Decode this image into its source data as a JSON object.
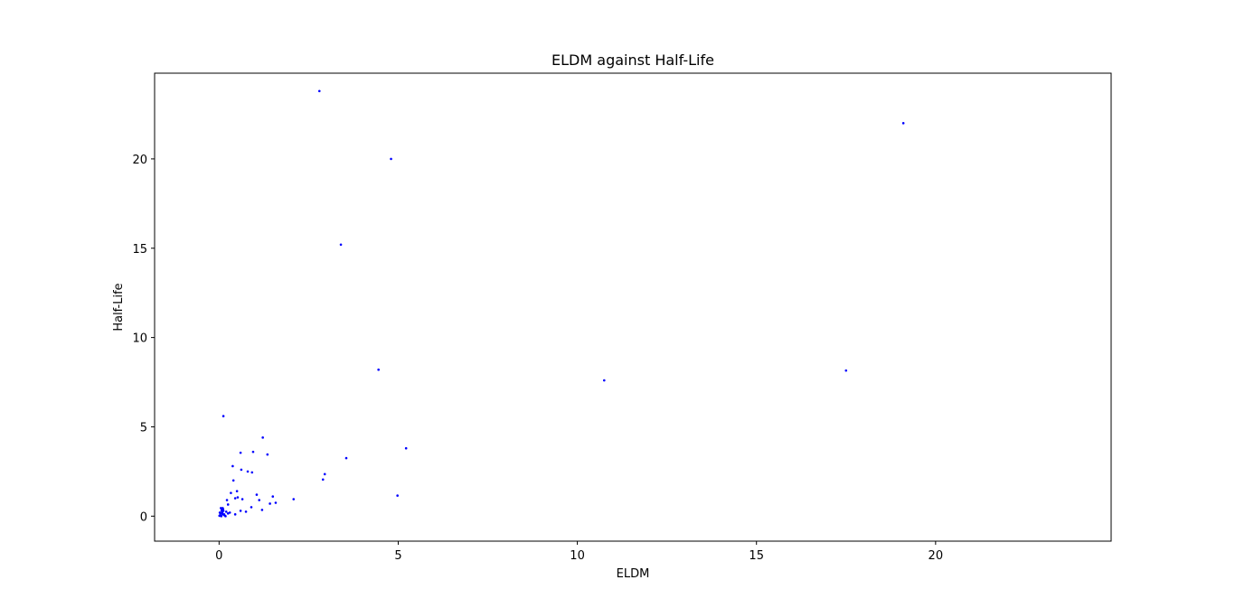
{
  "chart_data": {
    "type": "scatter",
    "title": "ELDM against Half-Life",
    "xlabel": "ELDM",
    "ylabel": "Half-Life",
    "xlim": [
      -1.8,
      24.9
    ],
    "ylim": [
      -1.4,
      24.8
    ],
    "x_ticks": [
      0,
      5,
      10,
      15,
      20
    ],
    "y_ticks": [
      0,
      5,
      10,
      15,
      20
    ],
    "grid": false,
    "marker_color": "#0000ff",
    "series": [
      {
        "x": [
          2.8,
          19.1,
          4.8,
          3.4,
          4.45,
          17.5,
          10.75,
          0.12,
          1.22,
          5.22,
          0.6,
          0.95,
          1.35,
          3.55,
          0.38,
          0.62,
          0.8,
          0.92,
          0.4,
          2.9,
          2.95,
          0.5,
          0.33,
          1.05,
          0.45,
          4.98,
          0.52,
          1.5,
          0.22,
          0.65,
          2.08,
          1.12,
          1.58,
          1.42,
          0.25,
          0.9,
          0.1,
          1.2,
          0.6,
          0.75,
          0.3,
          0.45,
          0.05,
          0.08,
          0.12,
          0.02,
          0.04,
          0.1,
          0.15,
          0.18,
          0.2,
          0.06,
          0.03,
          0.09,
          0.14,
          0.25,
          0.07,
          0.01,
          0.11
        ],
        "y": [
          23.8,
          22.0,
          20.0,
          15.2,
          8.2,
          8.15,
          7.6,
          5.6,
          4.4,
          3.8,
          3.55,
          3.6,
          3.45,
          3.25,
          2.8,
          2.6,
          2.5,
          2.45,
          2.0,
          2.05,
          2.35,
          1.4,
          1.3,
          1.2,
          1.0,
          1.15,
          1.05,
          1.1,
          0.9,
          0.95,
          0.95,
          0.9,
          0.75,
          0.7,
          0.65,
          0.5,
          0.45,
          0.35,
          0.3,
          0.25,
          0.2,
          0.1,
          0.45,
          0.35,
          0.3,
          0.2,
          0.15,
          0.1,
          0.05,
          0.0,
          0.25,
          0.0,
          0.05,
          0.2,
          0.1,
          0.15,
          0.3,
          0.02,
          0.4
        ]
      }
    ]
  }
}
